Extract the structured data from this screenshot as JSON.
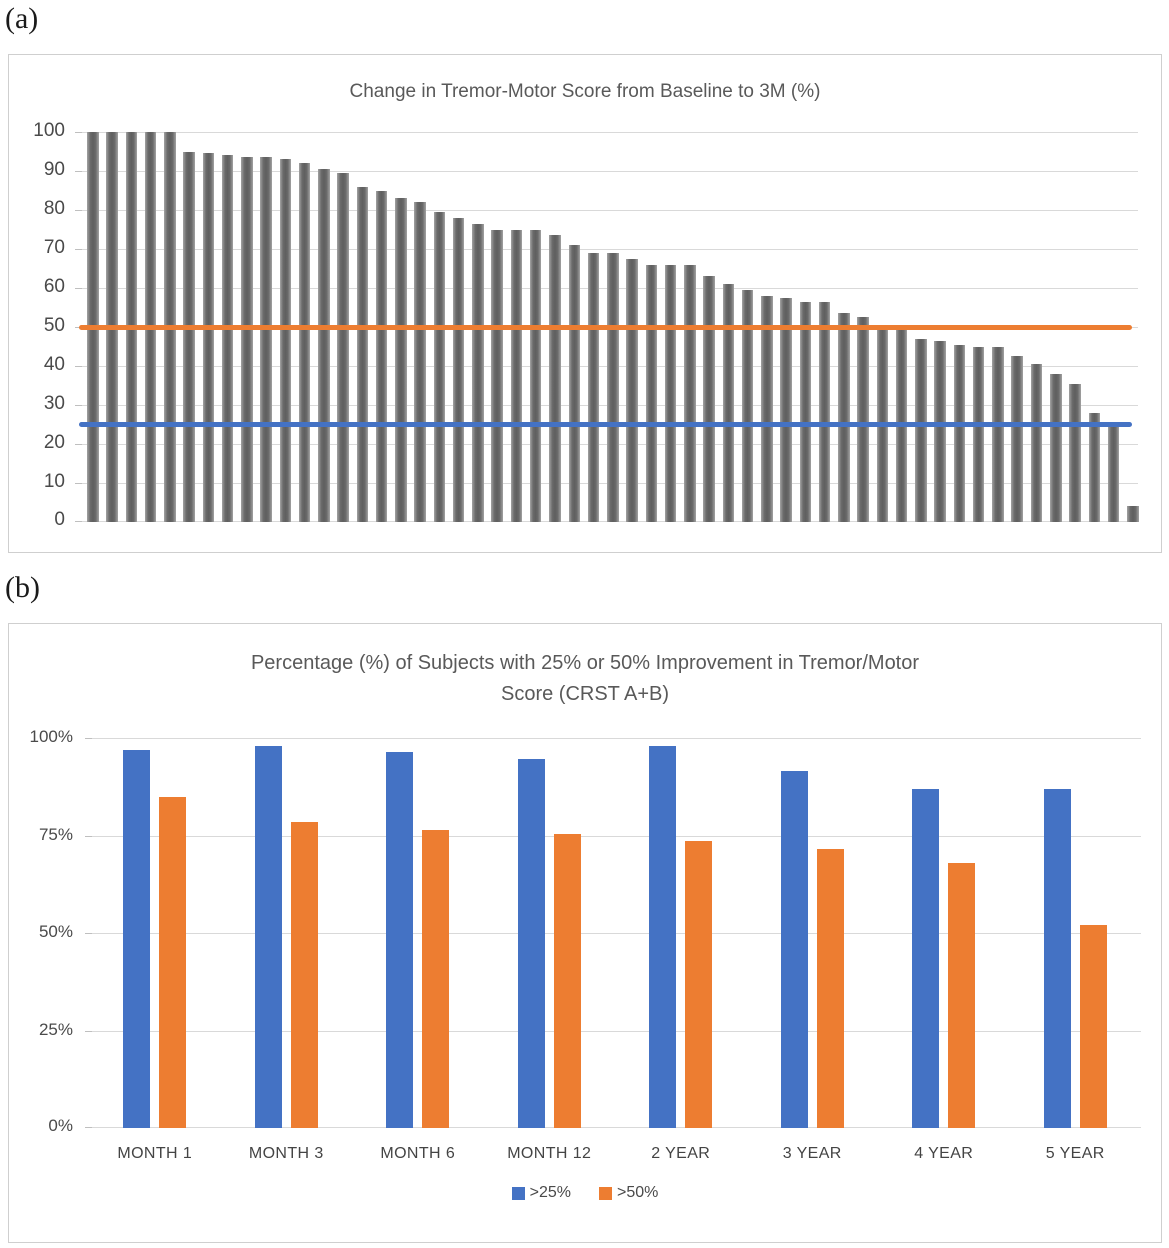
{
  "figure": {
    "panel_a_label": "(a)",
    "panel_b_label": "(b)"
  },
  "colors": {
    "blue": "#4472C4",
    "orange": "#ED7D31",
    "bar_gray": "#6d6d6d",
    "grid": "#d9d9d9"
  },
  "chart_data": [
    {
      "type": "bar",
      "title": "Change in Tremor-Motor Score from Baseline to 3M (%)",
      "xlabel": "",
      "ylabel": "",
      "ylim": [
        0,
        100
      ],
      "yticks": [
        "100",
        "90",
        "80",
        "70",
        "60",
        "50",
        "40",
        "30",
        "20",
        "10",
        "0"
      ],
      "grid": true,
      "legend_position": "none",
      "bar_color": "#6d6d6d",
      "values": [
        100,
        100,
        100,
        100,
        100,
        95,
        94.5,
        94,
        93.5,
        93.5,
        93,
        92,
        90.5,
        89.5,
        86,
        85,
        83,
        82,
        79.5,
        78,
        76.5,
        75,
        75,
        75,
        73.5,
        71,
        69,
        69,
        67.5,
        66,
        66,
        66,
        63,
        61,
        59.5,
        58,
        57.5,
        56.5,
        56.5,
        53.5,
        52.5,
        50,
        49.5,
        47,
        46.5,
        45.5,
        45,
        45,
        42.5,
        40.5,
        38,
        35.5,
        28,
        25,
        4
      ],
      "reference_lines": [
        {
          "value": 50,
          "color": "#ED7D31"
        },
        {
          "value": 25,
          "color": "#4472C4"
        }
      ]
    },
    {
      "type": "bar",
      "title": "Percentage (%) of Subjects with 25% or 50% Improvement in Tremor/Motor Score (CRST A+B)",
      "title_lines": [
        "Percentage (%) of Subjects with 25% or 50% Improvement in Tremor/Motor",
        "Score (CRST A+B)"
      ],
      "categories": [
        "MONTH 1",
        "MONTH 3",
        "MONTH 6",
        "MONTH 12",
        "2 YEAR",
        "3 YEAR",
        "4 YEAR",
        "5 YEAR"
      ],
      "series": [
        {
          "name": ">25%",
          "color": "#4472C4",
          "values": [
            97,
            98,
            96.5,
            94.5,
            98,
            91.5,
            87,
            87
          ]
        },
        {
          "name": ">50%",
          "color": "#ED7D31",
          "values": [
            85,
            78.5,
            76.5,
            75.5,
            73.5,
            71.5,
            68,
            52
          ]
        }
      ],
      "xlabel": "",
      "ylabel": "",
      "ylim": [
        0,
        100
      ],
      "yticks": [
        "100%",
        "75%",
        "50%",
        "25%",
        "0%"
      ],
      "grid": true,
      "legend_position": "bottom"
    }
  ]
}
